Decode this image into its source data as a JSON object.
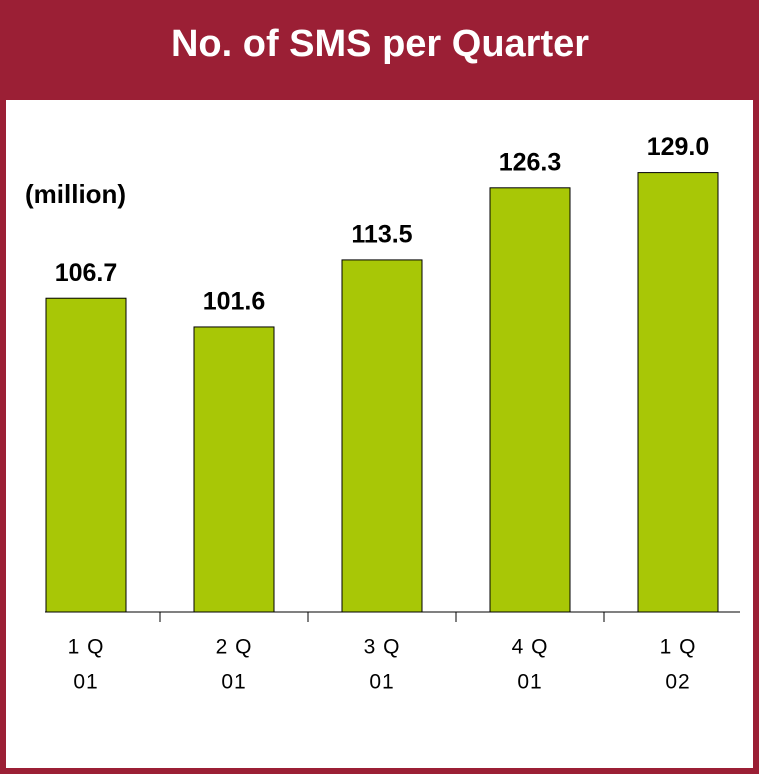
{
  "chart_data": {
    "type": "bar",
    "title": "No. of SMS per Quarter",
    "unit_label": "(million)",
    "categories": [
      [
        "1 Q",
        "01"
      ],
      [
        "2 Q",
        "01"
      ],
      [
        "3 Q",
        "01"
      ],
      [
        "4 Q",
        "01"
      ],
      [
        "1 Q",
        "02"
      ]
    ],
    "values": [
      106.7,
      101.6,
      113.5,
      126.3,
      129
    ],
    "value_labels": [
      "106.7",
      "101.6",
      "113.5",
      "126.3",
      "129.0"
    ],
    "color": "#a8c706",
    "ylim": [
      51,
      141
    ]
  }
}
